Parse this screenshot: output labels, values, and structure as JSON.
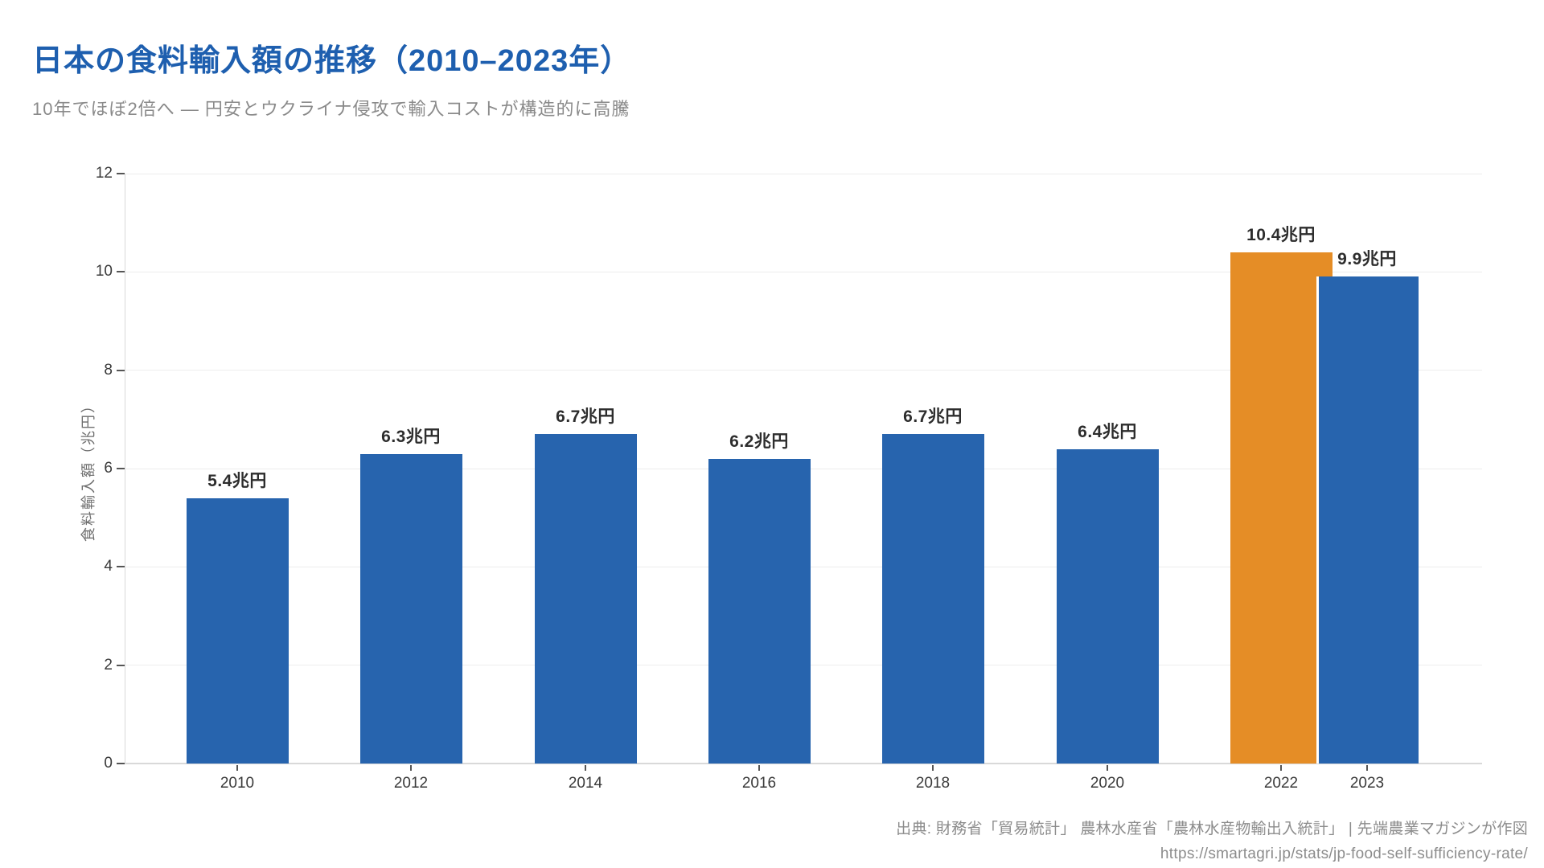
{
  "page": {
    "title": "日本の食料輸入額の推移（2010–2023年）",
    "subtitle": "10年でほぼ2倍へ ― 円安とウクライナ侵攻で輸入コストが構造的に高騰"
  },
  "chart_data": {
    "type": "bar",
    "title": "日本の食料輸入額の推移（2010–2023年）",
    "subtitle": "10年でほぼ2倍へ ― 円安とウクライナ侵攻で輸入コストが構造的に高騰",
    "categories": [
      "2010",
      "2012",
      "2014",
      "2016",
      "2018",
      "2020",
      "2022",
      "2023"
    ],
    "values": [
      5.4,
      6.3,
      6.7,
      6.2,
      6.7,
      6.4,
      10.4,
      9.9
    ],
    "bar_labels": [
      "5.4兆円",
      "6.3兆円",
      "6.7兆円",
      "6.2兆円",
      "6.7兆円",
      "6.4兆円",
      "10.4兆円",
      "9.9兆円"
    ],
    "unit": "兆円",
    "xlabel": "",
    "ylabel": "食料輸入額（兆円）",
    "ylim": [
      0,
      12
    ],
    "yticks": [
      0,
      2,
      4,
      6,
      8,
      10,
      12
    ],
    "grid": true,
    "legend": "none",
    "bar_color": "#2764AE",
    "highlight_color": "#E58D26",
    "highlight_index": 6,
    "highlight_category": "2022",
    "note": "2023 bar overlaps 2022 bar with white separator edge"
  },
  "colors": {
    "title_blue": "#1E5FAF",
    "subtitle_gray": "#8A8A8A",
    "bar_blue": "#2764AE",
    "bar_orange": "#E58D26",
    "gridline": "#EDEDED",
    "footer_gray": "#8C8C8C"
  },
  "footer": {
    "source": "出典: 財務省「貿易統計」 農林水産省「農林水産物輸出入統計」 | 先端農業マガジンが作図",
    "url": "https://smartagri.jp/stats/jp-food-self-sufficiency-rate/"
  }
}
